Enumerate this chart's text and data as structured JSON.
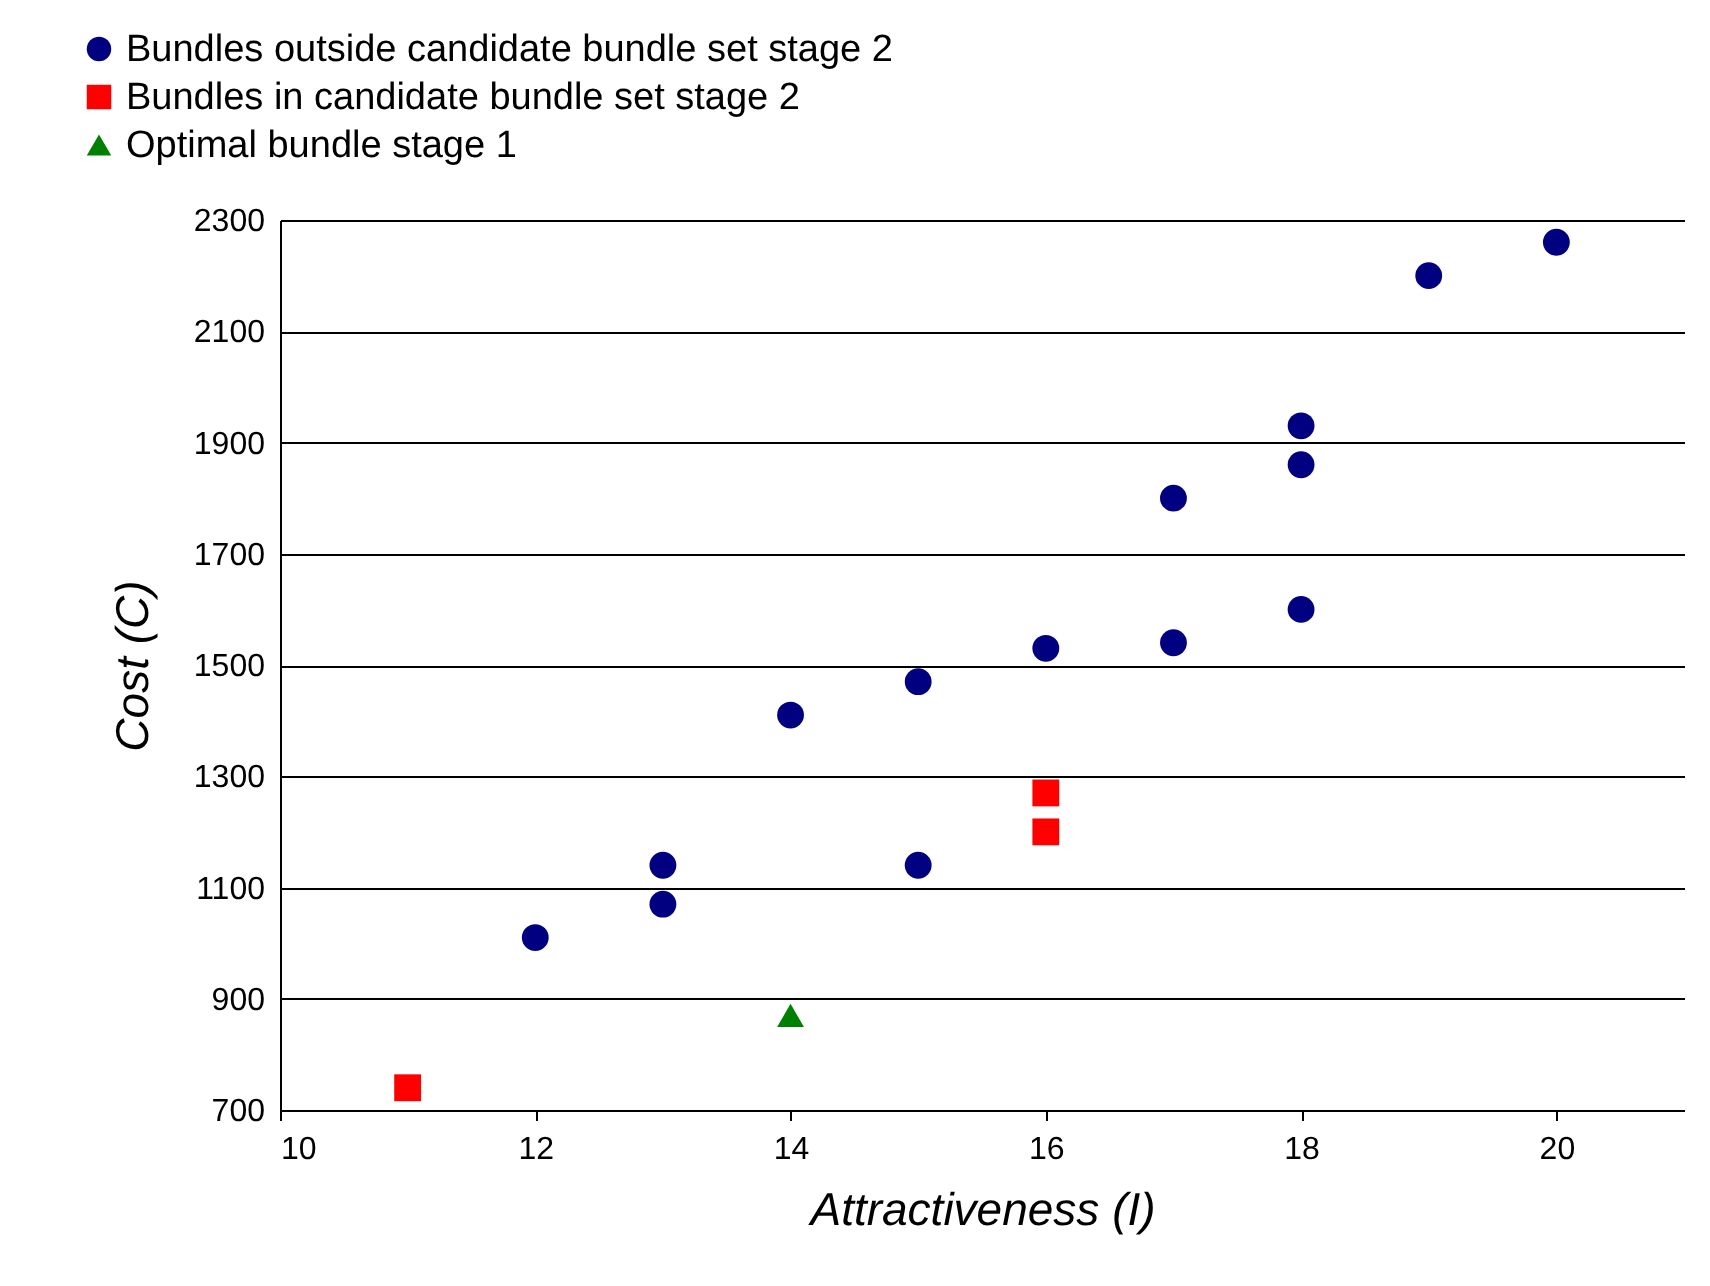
{
  "chart_data": {
    "type": "scatter",
    "xlabel": "Attractiveness (I)",
    "ylabel": "Cost (C)",
    "xlim": [
      10,
      21
    ],
    "xticks": [
      10,
      12,
      14,
      16,
      18,
      20
    ],
    "ylim": [
      700,
      2300
    ],
    "yticks": [
      700,
      900,
      1100,
      1300,
      1500,
      1700,
      1900,
      2100,
      2300
    ],
    "grid": "y",
    "legend": "top left",
    "series": [
      {
        "name": "Bundles outside candidate bundle set stage 2",
        "color": "#000080",
        "marker": "circle",
        "x": [
          12,
          13,
          13,
          14,
          15,
          15,
          16,
          17,
          17,
          18,
          18,
          18,
          19,
          20
        ],
        "values": [
          1010,
          1140,
          1070,
          1410,
          1470,
          1140,
          1530,
          1540,
          1800,
          1600,
          1860,
          1930,
          2200,
          2260
        ]
      },
      {
        "name": "Bundles in candidate bundle set stage 2",
        "color": "#ff0000",
        "marker": "square",
        "x": [
          11,
          16,
          16
        ],
        "values": [
          740,
          1270,
          1200
        ]
      },
      {
        "name": "Optimal bundle stage 1",
        "color": "#008000",
        "marker": "triangle",
        "x": [
          14
        ],
        "values": [
          870
        ]
      }
    ]
  }
}
